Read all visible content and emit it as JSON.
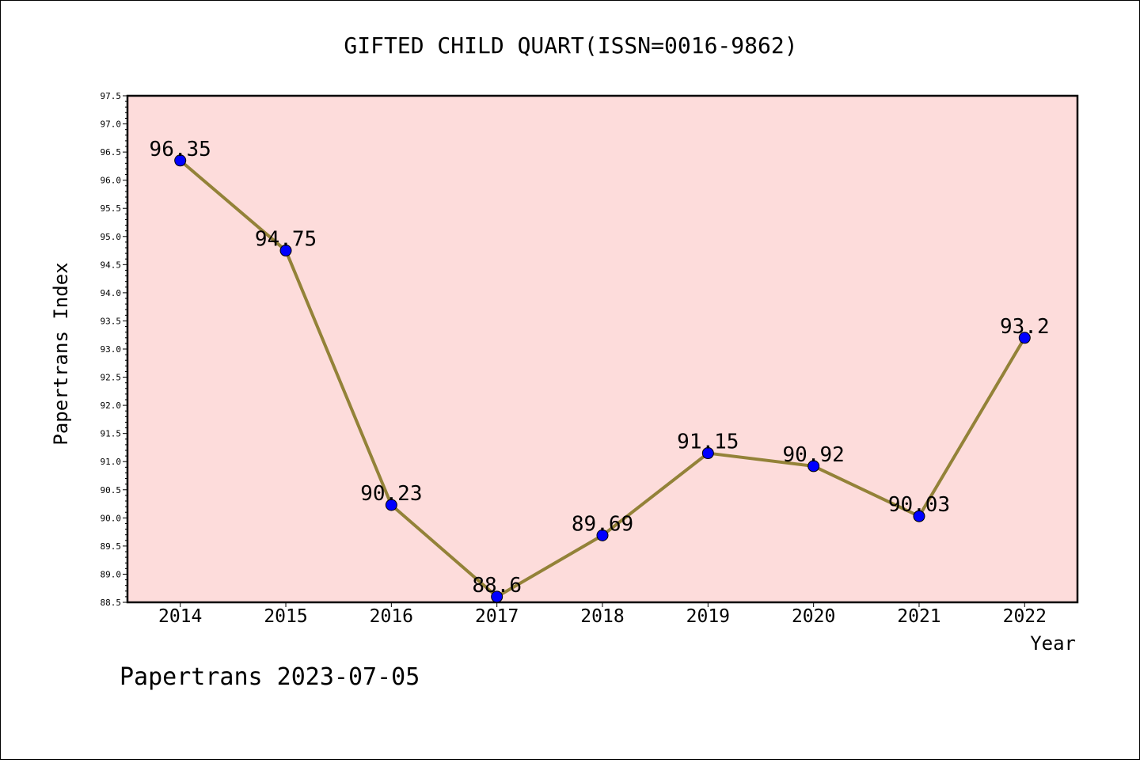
{
  "chart_data": {
    "type": "line",
    "title": "GIFTED CHILD QUART(ISSN=0016-9862)",
    "xlabel": "Year",
    "ylabel": "Papertrans Index",
    "categories": [
      "2014",
      "2015",
      "2016",
      "2017",
      "2018",
      "2019",
      "2020",
      "2021",
      "2022"
    ],
    "series": [
      {
        "values": [
          96.35,
          94.75,
          90.23,
          88.6,
          89.69,
          91.15,
          90.92,
          90.03,
          93.2
        ],
        "labels": [
          "96.35",
          "94.75",
          "90.23",
          "88.6",
          "89.69",
          "91.15",
          "90.92",
          "90.03",
          "93.2"
        ]
      }
    ],
    "ylim": [
      88.5,
      97.5
    ],
    "yticks": [
      "88.5",
      "89.0",
      "89.5",
      "90.0",
      "90.5",
      "91.0",
      "91.5",
      "92.0",
      "92.5",
      "93.0",
      "93.5",
      "94.0",
      "94.5",
      "95.0",
      "95.5",
      "96.0",
      "96.5",
      "97.0",
      "97.5"
    ],
    "grid": false,
    "legend": "none",
    "colors": {
      "plot_background": "#fddcdb",
      "line": "#938238",
      "marker": "#0000ff"
    }
  },
  "footer": "Papertrans 2023-07-05"
}
